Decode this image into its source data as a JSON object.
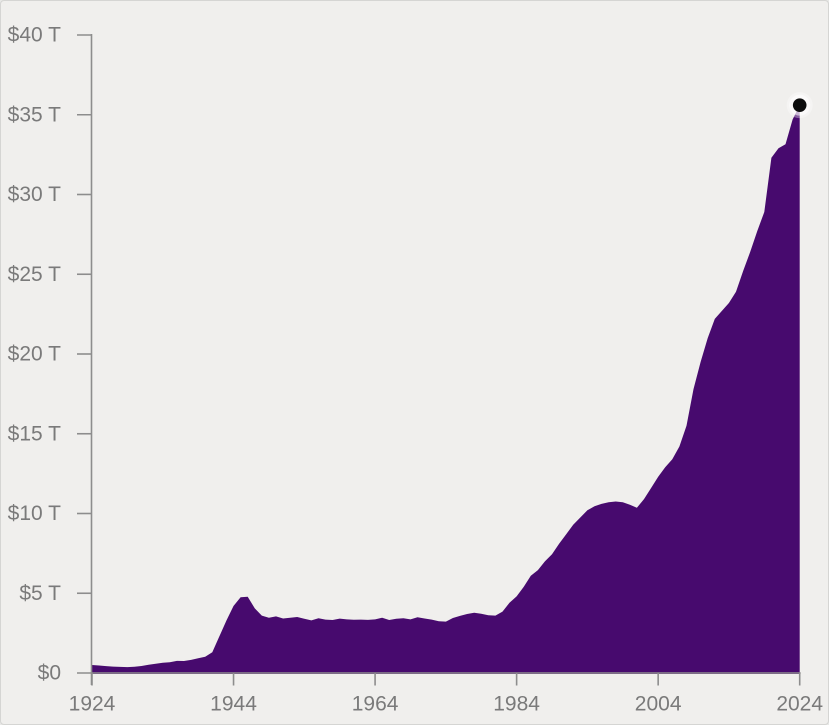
{
  "chart_data": {
    "type": "area",
    "title": "",
    "xlabel": "",
    "ylabel": "",
    "xlim": [
      1924,
      2024
    ],
    "ylim": [
      0,
      40
    ],
    "grid": "off",
    "legend": "none",
    "unit": "trillions of dollars",
    "colors": {
      "background": "#f0efed",
      "area_fill": "#470a6e",
      "axis_line": "#8d8d8d",
      "tick_line": "#8d8d8d",
      "tick_label": "#7a7a7a",
      "end_dot": "#0d0d0d",
      "end_dot_halo": "#ffffff"
    },
    "y_ticks": {
      "values": [
        0,
        5,
        10,
        15,
        20,
        25,
        30,
        35,
        40
      ],
      "labels": [
        "$0",
        "$5 T",
        "$10 T",
        "$15 T",
        "$20 T",
        "$25 T",
        "$30 T",
        "$35 T",
        "$40 T"
      ]
    },
    "x_ticks": {
      "values": [
        1924,
        1944,
        1964,
        1984,
        2004,
        2024
      ],
      "labels": [
        "1924",
        "1944",
        "1964",
        "1984",
        "2004",
        "2024"
      ]
    },
    "end_dot": {
      "year": 2024,
      "value": 35.6
    },
    "series": [
      {
        "name": "debt-trillions",
        "points": [
          [
            1924,
            0.5
          ],
          [
            1925,
            0.47
          ],
          [
            1926,
            0.43
          ],
          [
            1927,
            0.4
          ],
          [
            1928,
            0.38
          ],
          [
            1929,
            0.37
          ],
          [
            1930,
            0.39
          ],
          [
            1931,
            0.44
          ],
          [
            1932,
            0.52
          ],
          [
            1933,
            0.58
          ],
          [
            1934,
            0.64
          ],
          [
            1935,
            0.68
          ],
          [
            1936,
            0.76
          ],
          [
            1937,
            0.75
          ],
          [
            1938,
            0.82
          ],
          [
            1939,
            0.92
          ],
          [
            1940,
            1.02
          ],
          [
            1941,
            1.3
          ],
          [
            1942,
            2.3
          ],
          [
            1943,
            3.3
          ],
          [
            1944,
            4.2
          ],
          [
            1945,
            4.75
          ],
          [
            1946,
            4.78
          ],
          [
            1947,
            4.05
          ],
          [
            1948,
            3.6
          ],
          [
            1949,
            3.47
          ],
          [
            1950,
            3.55
          ],
          [
            1951,
            3.42
          ],
          [
            1952,
            3.46
          ],
          [
            1953,
            3.51
          ],
          [
            1954,
            3.4
          ],
          [
            1955,
            3.3
          ],
          [
            1956,
            3.43
          ],
          [
            1957,
            3.35
          ],
          [
            1958,
            3.32
          ],
          [
            1959,
            3.41
          ],
          [
            1960,
            3.36
          ],
          [
            1961,
            3.34
          ],
          [
            1962,
            3.35
          ],
          [
            1963,
            3.33
          ],
          [
            1964,
            3.36
          ],
          [
            1965,
            3.47
          ],
          [
            1966,
            3.32
          ],
          [
            1967,
            3.4
          ],
          [
            1968,
            3.43
          ],
          [
            1969,
            3.36
          ],
          [
            1970,
            3.5
          ],
          [
            1971,
            3.42
          ],
          [
            1972,
            3.35
          ],
          [
            1973,
            3.25
          ],
          [
            1974,
            3.22
          ],
          [
            1975,
            3.45
          ],
          [
            1976,
            3.58
          ],
          [
            1977,
            3.7
          ],
          [
            1978,
            3.78
          ],
          [
            1979,
            3.72
          ],
          [
            1980,
            3.62
          ],
          [
            1981,
            3.6
          ],
          [
            1982,
            3.85
          ],
          [
            1983,
            4.4
          ],
          [
            1984,
            4.8
          ],
          [
            1985,
            5.4
          ],
          [
            1986,
            6.1
          ],
          [
            1987,
            6.45
          ],
          [
            1988,
            7.0
          ],
          [
            1989,
            7.45
          ],
          [
            1990,
            8.1
          ],
          [
            1991,
            8.7
          ],
          [
            1992,
            9.3
          ],
          [
            1993,
            9.75
          ],
          [
            1994,
            10.2
          ],
          [
            1995,
            10.45
          ],
          [
            1996,
            10.6
          ],
          [
            1997,
            10.7
          ],
          [
            1998,
            10.75
          ],
          [
            1999,
            10.7
          ],
          [
            2000,
            10.55
          ],
          [
            2001,
            10.36
          ],
          [
            2002,
            10.9
          ],
          [
            2003,
            11.6
          ],
          [
            2004,
            12.3
          ],
          [
            2005,
            12.9
          ],
          [
            2006,
            13.4
          ],
          [
            2007,
            14.2
          ],
          [
            2008,
            15.5
          ],
          [
            2009,
            17.8
          ],
          [
            2010,
            19.5
          ],
          [
            2011,
            21.0
          ],
          [
            2012,
            22.2
          ],
          [
            2013,
            22.7
          ],
          [
            2014,
            23.2
          ],
          [
            2015,
            23.9
          ],
          [
            2016,
            25.2
          ],
          [
            2017,
            26.4
          ],
          [
            2018,
            27.7
          ],
          [
            2019,
            28.9
          ],
          [
            2020,
            32.3
          ],
          [
            2021,
            32.9
          ],
          [
            2022,
            33.15
          ],
          [
            2023,
            34.7
          ],
          [
            2024,
            35.6
          ]
        ]
      }
    ]
  }
}
